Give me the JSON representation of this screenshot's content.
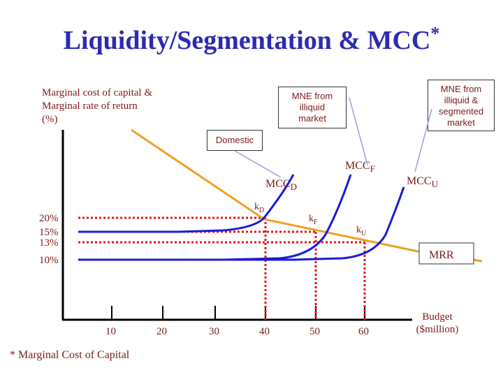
{
  "slide": {
    "title": "Liquidity/Segmentation & MCC",
    "title_mark": "*",
    "footnote": "* Marginal Cost of Capital"
  },
  "y_axis": {
    "label_lines": [
      "Marginal cost of capital &",
      "Marginal rate of return",
      "(%)"
    ]
  },
  "x_axis": {
    "label_lines": [
      "Budget",
      "($million)"
    ]
  },
  "callouts": {
    "illiquid": {
      "lines": [
        "MNE from",
        "illiquid",
        "market"
      ]
    },
    "segmented": {
      "lines": [
        "MNE from",
        "illiquid &",
        "segmented",
        "market"
      ]
    },
    "domestic": {
      "text": "Domestic"
    },
    "mrr_box": {
      "text": "MRR"
    }
  },
  "curve_labels": {
    "mcc_d": {
      "main": "MCC",
      "sub": "D"
    },
    "mcc_f": {
      "main": "MCC",
      "sub": "F"
    },
    "mcc_u": {
      "main": "MCC",
      "sub": "U"
    },
    "k_d": {
      "main": "k",
      "sub": "D"
    },
    "k_f": {
      "main": "k",
      "sub": "F"
    },
    "k_u": {
      "main": "k",
      "sub": "U"
    }
  },
  "chart_data": {
    "type": "line",
    "title": "Liquidity/Segmentation & MCC",
    "xlabel": "Budget ($million)",
    "ylabel": "Marginal cost of capital & Marginal rate of return (%)",
    "x_ticks": [
      "10",
      "20",
      "30",
      "40",
      "50",
      "60"
    ],
    "y_ticks": [
      "20%",
      "15%",
      "13%",
      "10%"
    ],
    "series": [
      {
        "name": "MCCD",
        "flat_level": "15%",
        "rises_after": 40
      },
      {
        "name": "MCCF",
        "flat_level": "10%",
        "rises_after": 50
      },
      {
        "name": "MCCU",
        "flat_level": "10%",
        "rises_after": 60
      },
      {
        "name": "MRR",
        "trend": "downward sloping"
      }
    ],
    "equilibria": [
      {
        "label": "kD",
        "budget": 40,
        "rate": "20%"
      },
      {
        "label": "kF",
        "budget": 50,
        "rate": "15%"
      },
      {
        "label": "kU",
        "budget": 60,
        "rate": "13%"
      }
    ],
    "colors": {
      "mcc": "#1a1ad8",
      "mrr": "#f0a020",
      "guides": "#e01818",
      "text": "#7a1a1a",
      "title": "#2b2bb0"
    }
  }
}
